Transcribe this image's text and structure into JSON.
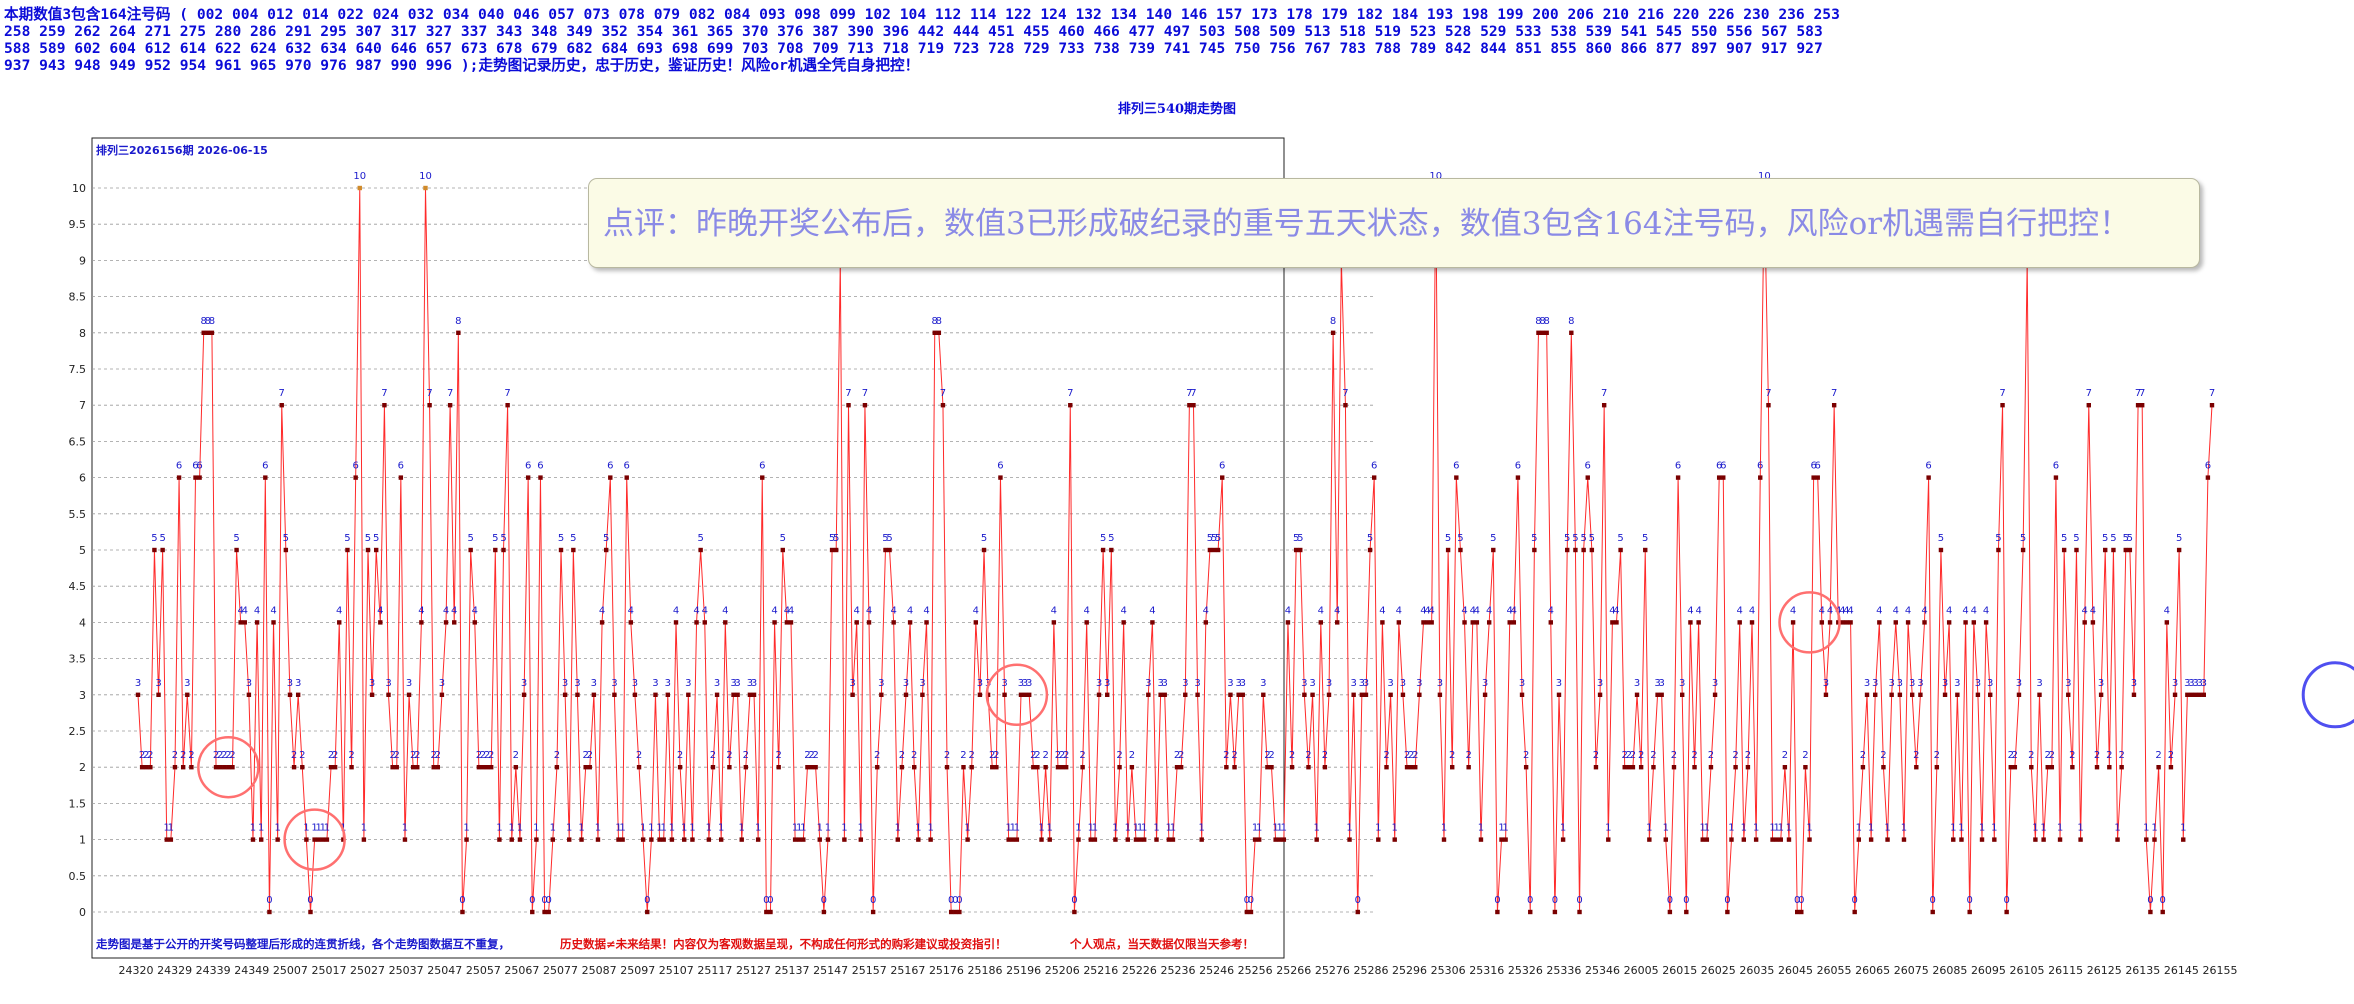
{
  "header": {
    "lines": [
      "本期数值3包含164注号码  ( 002  004  012  014  022  024  032  034  040  046  057  073  078  079  082  084  093  098  099  102  104  112  114  122  124  132  134  140  146  157  173  178  179  182  184  193  198  199  200  206  210  216  220  226  230  236  253",
      "258  259  262  264  271  275  280  286  291  295  307  317  327  337  343  348  349  352  354  361  365  370  376  387  390  396  442  444  451  455  460  466  477  497  503  508  509  513  518  519  523  528  529  533  538  539  541  545  550  556  567  583",
      "588  589  602  604  612  614  622  624  632  634  640  646  657  673  678  679  682  684  693  698  699  703  708  709  713  718  719  723  728  729  733  738  739  741  745  750  756  767  783  788  789  842  844  851  855  860  866  877  897  907  917  927",
      "937  943  948  949  952  954  961  965  970  976  987  990  996  );走势图记录历史，忠于历史，鉴证历史！风险or机遇全凭自身把控！"
    ]
  },
  "chart_title": "排列三540期走势图",
  "panel_label": "排列三2026156期 2026-06-15",
  "comment": "点评：昨晚开奖公布后，数值3已形成破纪录的重号五天状态，数值3包含164注号码，风险or机遇需自行把控！",
  "footer": {
    "part1": "走势图是基于公开的开奖号码整理后形成的连贯折线，各个走势图数据互不重复，",
    "part2": "历史数据≠未来结果！内容仅为客观数据呈现，不构成任何形式的购彩建议或投资指引！",
    "part3": "个人观点，当天数据仅限当天参考！"
  },
  "colors": {
    "line": "#ff2a2a",
    "marker": "#7a0000",
    "marker_high": "#d08a2a",
    "grid": "#9a9a9a",
    "data_label": "#1a1acc",
    "circle": "#ff7070",
    "circle_blue": "#4f4ff0",
    "arrow": "#4f4ff0"
  },
  "chart_data": {
    "type": "line",
    "ylim": [
      0,
      10
    ],
    "yticks": [
      0,
      0.5,
      1,
      1.5,
      2,
      2.5,
      3,
      3.5,
      4,
      4.5,
      5,
      5.5,
      6,
      6.5,
      7,
      7.5,
      8,
      8.5,
      9,
      9.5,
      10
    ],
    "x_tick_labels": [
      "24320",
      "24329",
      "24339",
      "24349",
      "25007",
      "25017",
      "25027",
      "25037",
      "25047",
      "25057",
      "25067",
      "25077",
      "25087",
      "25097",
      "25107",
      "25117",
      "25127",
      "25137",
      "25147",
      "25157",
      "25167",
      "25176",
      "25186",
      "25196",
      "25206",
      "25216",
      "25226",
      "25236",
      "25246",
      "25256",
      "25266",
      "25276",
      "25286",
      "25296",
      "25306",
      "25316",
      "25326",
      "25336",
      "25346",
      "26005",
      "26015",
      "26025",
      "26035",
      "26045",
      "26055",
      "26065",
      "26075",
      "26085",
      "26095",
      "26105",
      "26115",
      "26125",
      "26135",
      "26145",
      "26155"
    ],
    "values": [
      3,
      2,
      2,
      2,
      5,
      3,
      5,
      1,
      1,
      2,
      6,
      2,
      3,
      2,
      6,
      6,
      8,
      8,
      8,
      2,
      2,
      2,
      2,
      2,
      5,
      4,
      4,
      3,
      1,
      4,
      1,
      6,
      0,
      4,
      1,
      7,
      5,
      3,
      2,
      3,
      2,
      1,
      0,
      1,
      1,
      1,
      1,
      2,
      2,
      4,
      1,
      5,
      2,
      6,
      10,
      1,
      5,
      3,
      5,
      4,
      7,
      3,
      2,
      2,
      6,
      1,
      3,
      2,
      2,
      4,
      10,
      7,
      2,
      2,
      3,
      4,
      7,
      4,
      8,
      0,
      1,
      5,
      4,
      2,
      2,
      2,
      2,
      5,
      1,
      5,
      7,
      1,
      2,
      1,
      3,
      6,
      0,
      1,
      6,
      0,
      0,
      1,
      2,
      5,
      3,
      1,
      5,
      3,
      1,
      2,
      2,
      3,
      1,
      4,
      5,
      6,
      3,
      1,
      1,
      6,
      4,
      3,
      2,
      1,
      0,
      1,
      3,
      1,
      1,
      3,
      1,
      4,
      2,
      1,
      3,
      1,
      4,
      5,
      4,
      1,
      2,
      3,
      1,
      4,
      2,
      3,
      3,
      1,
      2,
      3,
      3,
      1,
      6,
      0,
      0,
      4,
      2,
      5,
      4,
      4,
      1,
      1,
      1,
      2,
      2,
      2,
      1,
      0,
      1,
      5,
      5,
      9,
      1,
      7,
      3,
      4,
      1,
      7,
      4,
      0,
      2,
      3,
      5,
      5,
      4,
      1,
      2,
      3,
      4,
      2,
      1,
      3,
      4,
      1,
      8,
      8,
      7,
      2,
      0,
      0,
      0,
      2,
      1,
      2,
      4,
      3,
      5,
      3,
      2,
      2,
      6,
      3,
      1,
      1,
      1,
      3,
      3,
      3,
      2,
      2,
      1,
      2,
      1,
      4,
      2,
      2,
      2,
      7,
      0,
      1,
      2,
      4,
      1,
      1,
      3,
      5,
      3,
      5,
      1,
      2,
      4,
      1,
      2,
      1,
      1,
      1,
      3,
      4,
      1,
      3,
      3,
      1,
      1,
      2,
      2,
      3,
      7,
      7,
      3,
      1,
      4,
      5,
      5,
      5,
      6,
      2,
      3,
      2,
      3,
      3,
      0,
      0,
      1,
      1,
      3,
      2,
      2,
      1,
      1,
      1,
      4,
      2,
      5,
      5,
      3,
      2,
      3,
      1,
      4,
      2,
      3,
      8,
      4,
      9,
      7,
      1,
      3,
      0,
      3,
      3,
      5,
      6,
      1,
      4,
      2,
      3,
      1,
      4,
      3,
      2,
      2,
      2,
      3,
      4,
      4,
      4,
      10,
      3,
      1,
      5,
      2,
      6,
      5,
      4,
      2,
      4,
      4,
      1,
      3,
      4,
      5,
      0,
      1,
      1,
      4,
      4,
      6,
      3,
      2,
      0,
      5,
      8,
      8,
      8,
      4,
      0,
      3,
      1,
      5,
      8,
      5,
      0,
      5,
      6,
      5,
      2,
      3,
      7,
      1,
      4,
      4,
      5,
      2,
      2,
      2,
      3,
      2,
      5,
      1,
      2,
      3,
      3,
      1,
      0,
      2,
      6,
      3,
      0,
      4,
      2,
      4,
      1,
      1,
      2,
      3,
      6,
      6,
      0,
      1,
      2,
      4,
      1,
      2,
      4,
      1,
      6,
      10,
      7,
      1,
      1,
      1,
      2,
      1,
      4,
      0,
      0,
      2,
      1,
      6,
      6,
      4,
      3,
      4,
      7,
      4,
      4,
      4,
      4,
      0,
      1,
      2,
      3,
      1,
      3,
      4,
      2,
      1,
      3,
      4,
      3,
      1,
      4,
      3,
      2,
      3,
      4,
      6,
      0,
      2,
      5,
      3,
      4,
      1,
      3,
      1,
      4,
      0,
      4,
      3,
      1,
      4,
      3,
      1,
      5,
      7,
      0,
      2,
      2,
      3,
      5,
      9,
      2,
      1,
      3,
      1,
      2,
      2,
      6,
      1,
      5,
      3,
      2,
      5,
      1,
      4,
      7,
      4,
      2,
      3,
      5,
      2,
      5,
      1,
      2,
      5,
      5,
      3,
      7,
      7,
      1,
      0,
      1,
      2,
      0,
      4,
      2,
      3,
      5,
      1,
      3,
      3,
      3,
      3,
      3,
      6,
      7
    ],
    "highlight_circles": [
      {
        "x_index": 22,
        "y": 2
      },
      {
        "x_index": 43,
        "y": 1
      },
      {
        "x_index": 214,
        "y": 3
      },
      {
        "x_index": 407,
        "y": 4
      }
    ],
    "highlight_circle_blue": {
      "x_index": 535,
      "y": 3
    }
  }
}
